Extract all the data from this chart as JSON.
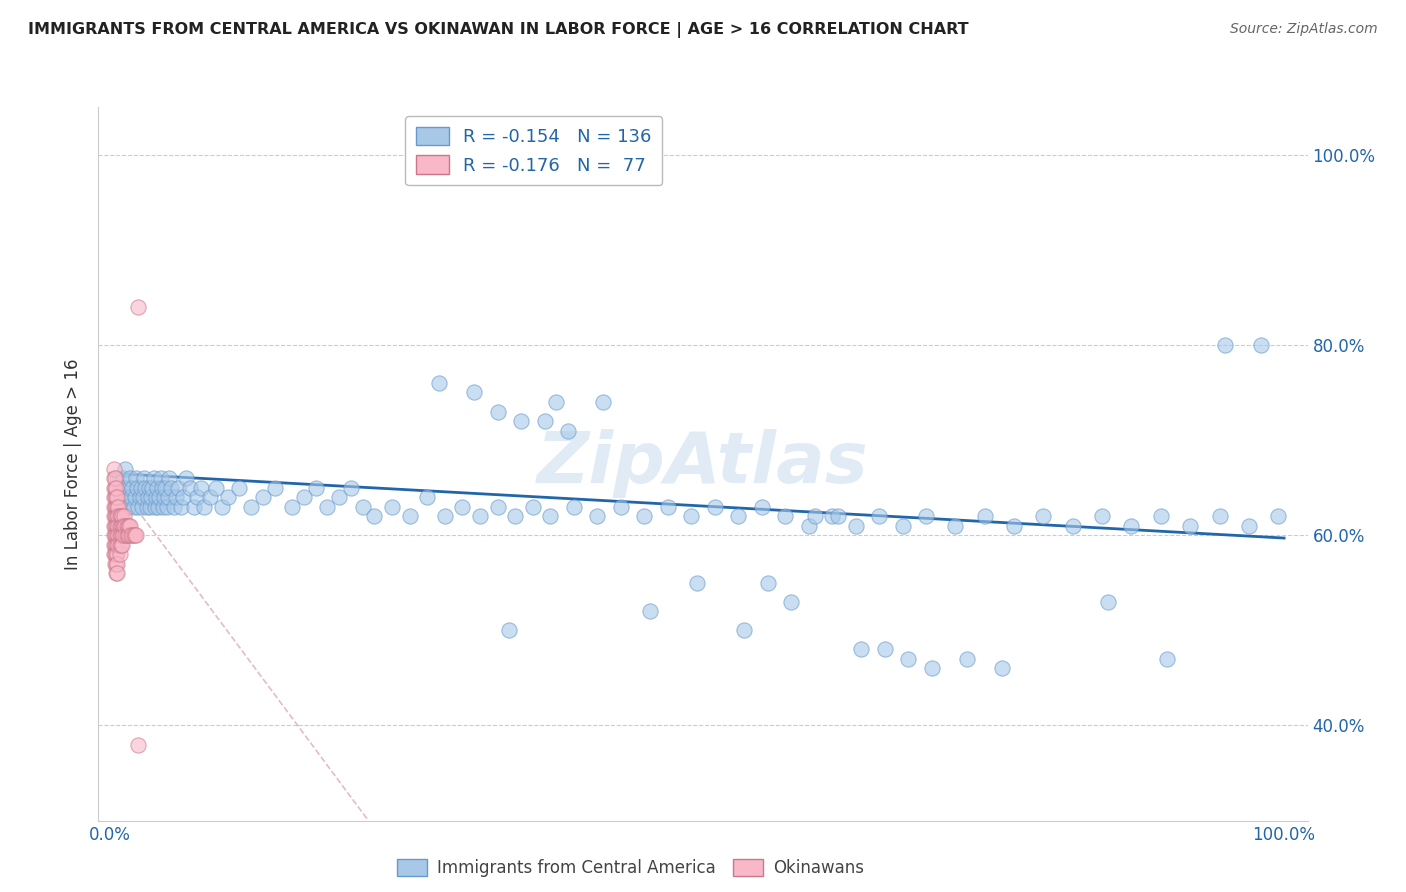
{
  "title": "IMMIGRANTS FROM CENTRAL AMERICA VS OKINAWAN IN LABOR FORCE | AGE > 16 CORRELATION CHART",
  "source": "Source: ZipAtlas.com",
  "ylabel": "In Labor Force | Age > 16",
  "legend1_R": "-0.154",
  "legend1_N": "136",
  "legend2_R": "-0.176",
  "legend2_N": "77",
  "blue_color": "#a8c8e8",
  "blue_edge": "#6699cc",
  "pink_color": "#f8b8c8",
  "pink_edge": "#cc7788",
  "trendline_blue": "#2266aa",
  "trendline_pink": "#ddaabb",
  "watermark": "ZipAtlas",
  "xlim": [
    0.0,
    1.0
  ],
  "ylim": [
    0.3,
    1.05
  ],
  "ytick_vals": [
    0.4,
    0.6,
    0.8,
    1.0
  ],
  "ytick_labels": [
    "40.0%",
    "60.0%",
    "80.0%",
    "100.0%"
  ],
  "xtick_vals": [
    0.0,
    1.0
  ],
  "xtick_labels": [
    "0.0%",
    "100.0%"
  ],
  "blue_trend_x": [
    0.0,
    1.0
  ],
  "blue_trend_y": [
    0.665,
    0.597
  ],
  "pink_trend_x": [
    0.0,
    0.22
  ],
  "pink_trend_y": [
    0.665,
    0.3
  ],
  "blue_x": [
    0.006,
    0.008,
    0.009,
    0.01,
    0.011,
    0.012,
    0.013,
    0.014,
    0.015,
    0.016,
    0.017,
    0.018,
    0.019,
    0.02,
    0.021,
    0.022,
    0.023,
    0.024,
    0.025,
    0.026,
    0.027,
    0.028,
    0.029,
    0.03,
    0.031,
    0.032,
    0.033,
    0.034,
    0.035,
    0.036,
    0.037,
    0.038,
    0.039,
    0.04,
    0.041,
    0.042,
    0.043,
    0.044,
    0.045,
    0.046,
    0.047,
    0.048,
    0.049,
    0.05,
    0.052,
    0.054,
    0.056,
    0.058,
    0.06,
    0.062,
    0.065,
    0.068,
    0.071,
    0.074,
    0.077,
    0.08,
    0.085,
    0.09,
    0.095,
    0.1,
    0.11,
    0.12,
    0.13,
    0.14,
    0.155,
    0.165,
    0.175,
    0.185,
    0.195,
    0.205,
    0.215,
    0.225,
    0.24,
    0.255,
    0.27,
    0.285,
    0.3,
    0.315,
    0.33,
    0.345,
    0.36,
    0.375,
    0.395,
    0.415,
    0.435,
    0.455,
    0.475,
    0.495,
    0.515,
    0.535,
    0.555,
    0.575,
    0.595,
    0.615,
    0.635,
    0.655,
    0.675,
    0.695,
    0.72,
    0.745,
    0.77,
    0.795,
    0.82,
    0.845,
    0.87,
    0.895,
    0.92,
    0.945,
    0.97,
    0.995,
    0.38,
    0.42,
    0.34,
    0.46,
    0.5,
    0.54,
    0.56,
    0.58,
    0.6,
    0.62,
    0.64,
    0.66,
    0.68,
    0.7,
    0.73,
    0.76,
    0.85,
    0.9,
    0.95,
    0.98,
    0.28,
    0.31,
    0.33,
    0.35,
    0.37,
    0.39
  ],
  "blue_y": [
    0.66,
    0.65,
    0.64,
    0.63,
    0.66,
    0.65,
    0.67,
    0.64,
    0.63,
    0.65,
    0.66,
    0.64,
    0.65,
    0.63,
    0.64,
    0.66,
    0.65,
    0.63,
    0.64,
    0.65,
    0.63,
    0.64,
    0.66,
    0.65,
    0.63,
    0.64,
    0.65,
    0.63,
    0.64,
    0.65,
    0.66,
    0.63,
    0.64,
    0.65,
    0.63,
    0.64,
    0.66,
    0.65,
    0.63,
    0.64,
    0.65,
    0.63,
    0.64,
    0.66,
    0.65,
    0.63,
    0.64,
    0.65,
    0.63,
    0.64,
    0.66,
    0.65,
    0.63,
    0.64,
    0.65,
    0.63,
    0.64,
    0.65,
    0.63,
    0.64,
    0.65,
    0.63,
    0.64,
    0.65,
    0.63,
    0.64,
    0.65,
    0.63,
    0.64,
    0.65,
    0.63,
    0.62,
    0.63,
    0.62,
    0.64,
    0.62,
    0.63,
    0.62,
    0.63,
    0.62,
    0.63,
    0.62,
    0.63,
    0.62,
    0.63,
    0.62,
    0.63,
    0.62,
    0.63,
    0.62,
    0.63,
    0.62,
    0.61,
    0.62,
    0.61,
    0.62,
    0.61,
    0.62,
    0.61,
    0.62,
    0.61,
    0.62,
    0.61,
    0.62,
    0.61,
    0.62,
    0.61,
    0.62,
    0.61,
    0.62,
    0.74,
    0.74,
    0.5,
    0.52,
    0.55,
    0.5,
    0.55,
    0.53,
    0.62,
    0.62,
    0.48,
    0.48,
    0.47,
    0.46,
    0.47,
    0.46,
    0.53,
    0.47,
    0.8,
    0.8,
    0.76,
    0.75,
    0.73,
    0.72,
    0.72,
    0.71
  ],
  "pink_x": [
    0.003,
    0.003,
    0.003,
    0.003,
    0.003,
    0.003,
    0.003,
    0.003,
    0.003,
    0.003,
    0.004,
    0.004,
    0.004,
    0.004,
    0.004,
    0.004,
    0.004,
    0.004,
    0.004,
    0.004,
    0.005,
    0.005,
    0.005,
    0.005,
    0.005,
    0.005,
    0.005,
    0.005,
    0.005,
    0.005,
    0.006,
    0.006,
    0.006,
    0.006,
    0.006,
    0.006,
    0.006,
    0.006,
    0.006,
    0.007,
    0.007,
    0.007,
    0.007,
    0.007,
    0.008,
    0.008,
    0.008,
    0.008,
    0.008,
    0.009,
    0.009,
    0.009,
    0.009,
    0.01,
    0.01,
    0.01,
    0.01,
    0.011,
    0.011,
    0.012,
    0.012,
    0.013,
    0.013,
    0.014,
    0.014,
    0.015,
    0.015,
    0.016,
    0.016,
    0.017,
    0.018,
    0.019,
    0.02,
    0.021,
    0.022,
    0.024,
    0.024
  ],
  "pink_y": [
    0.63,
    0.64,
    0.65,
    0.62,
    0.66,
    0.61,
    0.6,
    0.67,
    0.59,
    0.58,
    0.63,
    0.64,
    0.62,
    0.65,
    0.61,
    0.6,
    0.66,
    0.59,
    0.58,
    0.57,
    0.63,
    0.64,
    0.62,
    0.65,
    0.61,
    0.6,
    0.59,
    0.58,
    0.57,
    0.56,
    0.63,
    0.64,
    0.62,
    0.61,
    0.6,
    0.59,
    0.58,
    0.57,
    0.56,
    0.63,
    0.62,
    0.61,
    0.6,
    0.59,
    0.62,
    0.61,
    0.6,
    0.59,
    0.58,
    0.62,
    0.61,
    0.6,
    0.59,
    0.62,
    0.61,
    0.6,
    0.59,
    0.61,
    0.6,
    0.62,
    0.61,
    0.61,
    0.6,
    0.61,
    0.6,
    0.61,
    0.6,
    0.61,
    0.6,
    0.61,
    0.6,
    0.6,
    0.6,
    0.6,
    0.6,
    0.84,
    0.38
  ]
}
